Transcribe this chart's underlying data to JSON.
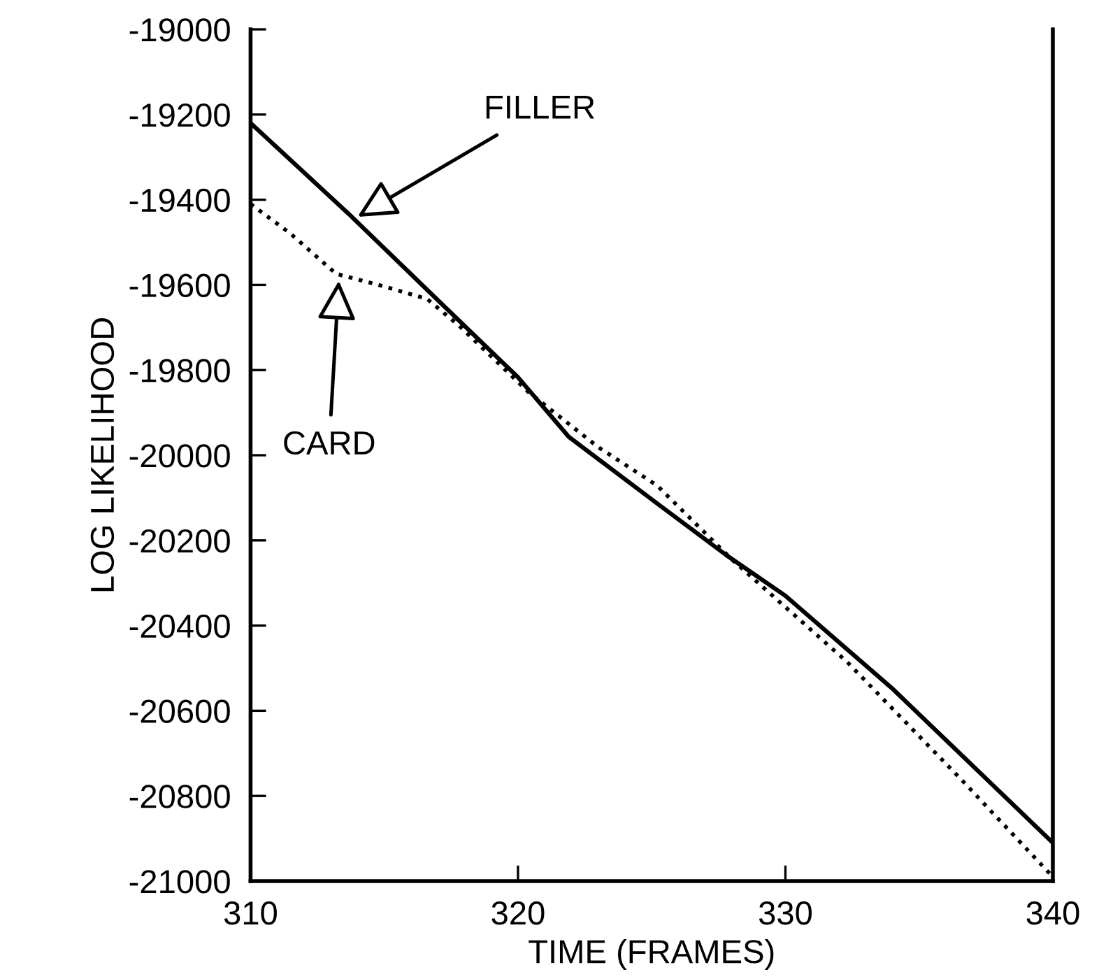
{
  "chart_data": {
    "type": "line",
    "xlabel": "TIME (FRAMES)",
    "ylabel": "LOG LIKELIHOOD",
    "xlim": [
      310,
      340
    ],
    "xticks": [
      310,
      320,
      330,
      340
    ],
    "ylim": [
      -21000,
      -19000
    ],
    "yticks": [
      -21000,
      -20800,
      -20600,
      -20400,
      -20200,
      -20000,
      -19800,
      -19600,
      -19400,
      -19200,
      -19000
    ],
    "grid": false,
    "legend": false,
    "marker": "none",
    "series": [
      {
        "color": "#000000",
        "line_style": "solid",
        "x": [
          310,
          313.7,
          317.3,
          320.0,
          321.9,
          325.2,
          327.8,
          330.0,
          334.0,
          340
        ],
        "values": [
          -19220,
          -19435,
          -19654,
          -19817,
          -19957,
          -20113,
          -20235,
          -20330,
          -20548,
          -20910
        ]
      },
      {
        "color": "#000000",
        "line_style": "dotted",
        "x": [
          310,
          311.5,
          313.2,
          314.9,
          316.6,
          317.8,
          320.4,
          323.0,
          325.2,
          328.0,
          332.3,
          336.6,
          340
        ],
        "values": [
          -19410,
          -19480,
          -19574,
          -19602,
          -19633,
          -19696,
          -19852,
          -19981,
          -20071,
          -20245,
          -20485,
          -20763,
          -20990
        ]
      }
    ],
    "annotations": [
      {
        "text": "FILLER",
        "x": 314.0,
        "y": -19440
      },
      {
        "text": "CARD",
        "x": 313.3,
        "y": -19590
      }
    ]
  }
}
